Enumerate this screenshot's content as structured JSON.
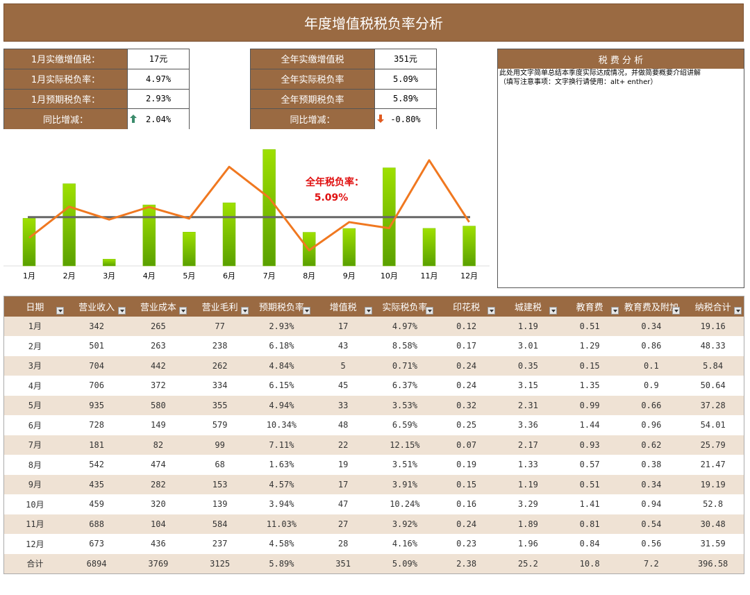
{
  "header": {
    "title": "年度增值税税负率分析"
  },
  "summary_month": [
    [
      "1月实缴增值税：",
      "17元"
    ],
    [
      "1月实际税负率：",
      "4.97%"
    ],
    [
      "1月预期税负率：",
      "2.93%"
    ],
    [
      "同比增减：",
      "2.04%"
    ]
  ],
  "summary_year": [
    [
      "全年实缴增值税",
      "351元"
    ],
    [
      "全年实际税负率",
      "5.09%"
    ],
    [
      "全年预期税负率",
      "5.89%"
    ],
    [
      "同比增减：",
      "-0.80%"
    ]
  ],
  "analysis": {
    "title": "税 费 分 析",
    "lines": [
      "此处用文字简单总结本季度实际达成情况，并做简要概要介绍讲解",
      "（填写注意事项：文字换行请使用：alt+ enther）"
    ]
  },
  "chart_data": {
    "type": "bar_line",
    "categories": [
      "1月",
      "2月",
      "3月",
      "4月",
      "5月",
      "6月",
      "7月",
      "8月",
      "9月",
      "10月",
      "11月",
      "12月"
    ],
    "series": [
      {
        "type": "bar",
        "color": "#7cc400",
        "values": [
          4.97,
          8.58,
          0.71,
          6.37,
          3.53,
          6.59,
          12.15,
          3.51,
          3.91,
          10.24,
          3.92,
          4.16
        ]
      },
      {
        "type": "line",
        "color": "#f07820",
        "values": [
          2.93,
          6.18,
          4.84,
          6.15,
          4.94,
          10.34,
          7.11,
          1.63,
          4.57,
          3.94,
          11.03,
          4.58
        ]
      }
    ],
    "reference": {
      "value": 5.09,
      "label": "5.09%",
      "title": "全年税负率：",
      "color": "#666666"
    }
  },
  "table": {
    "columns": [
      "日期",
      "营业收入",
      "营业成本",
      "营业毛利",
      "预期税负率",
      "增值税",
      "实际税负率",
      "印花税",
      "城建税",
      "教育费",
      "教育费及附加",
      "纳税合计"
    ],
    "rows": [
      [
        "1月",
        "342",
        "265",
        "77",
        "2.93%",
        "17",
        "4.97%",
        "0.12",
        "1.19",
        "0.51",
        "0.34",
        "19.16"
      ],
      [
        "2月",
        "501",
        "263",
        "238",
        "6.18%",
        "43",
        "8.58%",
        "0.17",
        "3.01",
        "1.29",
        "0.86",
        "48.33"
      ],
      [
        "3月",
        "704",
        "442",
        "262",
        "4.84%",
        "5",
        "0.71%",
        "0.24",
        "0.35",
        "0.15",
        "0.1",
        "5.84"
      ],
      [
        "4月",
        "706",
        "372",
        "334",
        "6.15%",
        "45",
        "6.37%",
        "0.24",
        "3.15",
        "1.35",
        "0.9",
        "50.64"
      ],
      [
        "5月",
        "935",
        "580",
        "355",
        "4.94%",
        "33",
        "3.53%",
        "0.32",
        "2.31",
        "0.99",
        "0.66",
        "37.28"
      ],
      [
        "6月",
        "728",
        "149",
        "579",
        "10.34%",
        "48",
        "6.59%",
        "0.25",
        "3.36",
        "1.44",
        "0.96",
        "54.01"
      ],
      [
        "7月",
        "181",
        "82",
        "99",
        "7.11%",
        "22",
        "12.15%",
        "0.07",
        "2.17",
        "0.93",
        "0.62",
        "25.79"
      ],
      [
        "8月",
        "542",
        "474",
        "68",
        "1.63%",
        "19",
        "3.51%",
        "0.19",
        "1.33",
        "0.57",
        "0.38",
        "21.47"
      ],
      [
        "9月",
        "435",
        "282",
        "153",
        "4.57%",
        "17",
        "3.91%",
        "0.15",
        "1.19",
        "0.51",
        "0.34",
        "19.19"
      ],
      [
        "10月",
        "459",
        "320",
        "139",
        "3.94%",
        "47",
        "10.24%",
        "0.16",
        "3.29",
        "1.41",
        "0.94",
        "52.8"
      ],
      [
        "11月",
        "688",
        "104",
        "584",
        "11.03%",
        "27",
        "3.92%",
        "0.24",
        "1.89",
        "0.81",
        "0.54",
        "30.48"
      ],
      [
        "12月",
        "673",
        "436",
        "237",
        "4.58%",
        "28",
        "4.16%",
        "0.23",
        "1.96",
        "0.84",
        "0.56",
        "31.59"
      ],
      [
        "合计",
        "6894",
        "3769",
        "3125",
        "5.89%",
        "351",
        "5.09%",
        "2.38",
        "25.2",
        "10.8",
        "7.2",
        "396.58"
      ]
    ]
  }
}
